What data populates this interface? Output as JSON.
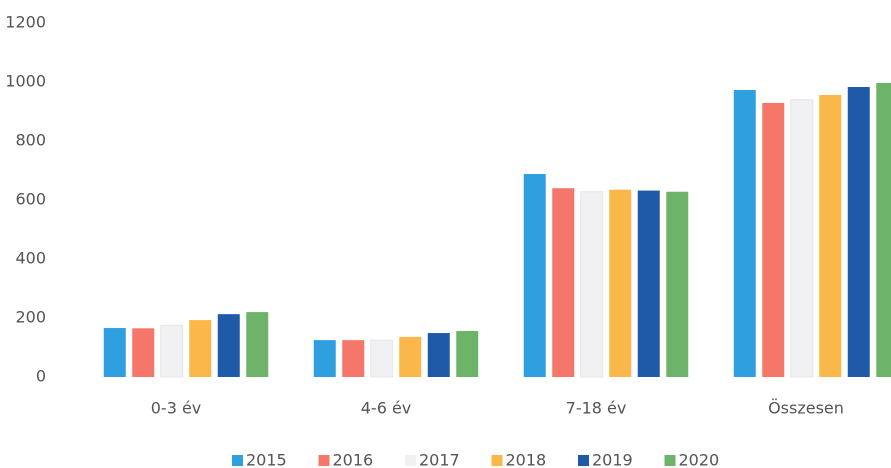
{
  "chart_data": {
    "type": "bar",
    "categories": [
      "0-3 év",
      "4-6 év",
      "7-18 év",
      "Összesen"
    ],
    "series": [
      {
        "name": "2015",
        "color": "#2f9fe0",
        "values": [
          166,
          125,
          688,
          973
        ]
      },
      {
        "name": "2016",
        "color": "#f4776a",
        "values": [
          165,
          125,
          640,
          929
        ]
      },
      {
        "name": "2017",
        "color": "#f1f1f3",
        "values": [
          175,
          125,
          628,
          940
        ]
      },
      {
        "name": "2018",
        "color": "#fbb84a",
        "values": [
          193,
          136,
          635,
          956
        ]
      },
      {
        "name": "2019",
        "color": "#1f5aa8",
        "values": [
          213,
          149,
          632,
          983
        ]
      },
      {
        "name": "2020",
        "color": "#6db36a",
        "values": [
          220,
          156,
          628,
          997
        ]
      }
    ],
    "ylim": [
      0,
      1200
    ],
    "yticks": [
      0,
      200,
      400,
      600,
      800,
      1000,
      1200
    ],
    "grid": false,
    "legend": "bottom"
  }
}
